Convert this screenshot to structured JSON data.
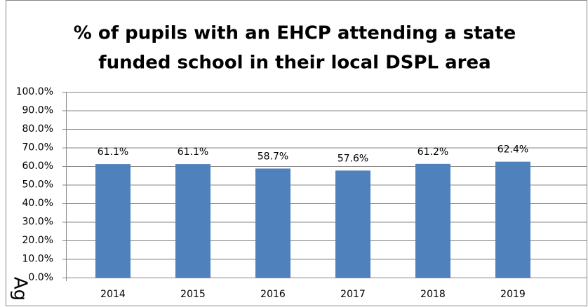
{
  "chart_data": {
    "type": "bar",
    "title": [
      "% of pupils with an EHCP attending a state",
      "funded school in their local DSPL area"
    ],
    "categories": [
      "2014",
      "2015",
      "2016",
      "2017",
      "2018",
      "2019"
    ],
    "values": [
      61.1,
      61.1,
      58.7,
      57.6,
      61.2,
      62.4
    ],
    "value_labels": [
      "61.1%",
      "61.1%",
      "58.7%",
      "57.6%",
      "61.2%",
      "62.4%"
    ],
    "color": "#4f81bd",
    "ylim": [
      0,
      100
    ],
    "yticks": [
      {
        "value": 0,
        "label": "0.0%"
      },
      {
        "value": 10,
        "label": "10.0%"
      },
      {
        "value": 20,
        "label": "20.0%"
      },
      {
        "value": 30,
        "label": "30.0%"
      },
      {
        "value": 40,
        "label": "40.0%"
      },
      {
        "value": 50,
        "label": "50.0%"
      },
      {
        "value": 60,
        "label": "60.0%"
      },
      {
        "value": 70,
        "label": "70.0%"
      },
      {
        "value": 80,
        "label": "80.0%"
      },
      {
        "value": 90,
        "label": "90.0%"
      },
      {
        "value": 100,
        "label": "100.0%"
      }
    ],
    "grid": true,
    "annotation": "Ag"
  }
}
